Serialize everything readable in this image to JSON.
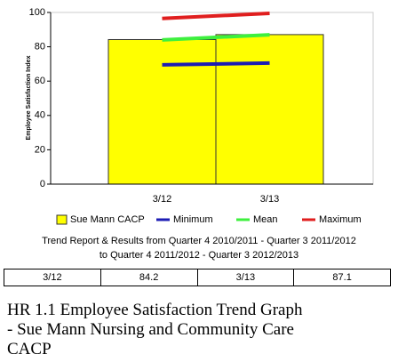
{
  "chart_data": {
    "type": "bar",
    "ylabel": "Employee Satisfaction Index",
    "categories": [
      "3/12",
      "3/13"
    ],
    "series": [
      {
        "name": "Sue Mann CACP",
        "color": "#ffff00",
        "values": [
          84.2,
          87.1
        ]
      },
      {
        "name": "Minimum",
        "type": "line",
        "color": "#1c1cb4",
        "values": [
          69.5,
          70.5
        ]
      },
      {
        "name": "Mean",
        "type": "line",
        "color": "#3ef03e",
        "values": [
          84,
          87
        ]
      },
      {
        "name": "Maximum",
        "type": "line",
        "color": "#e01e1e",
        "values": [
          96.5,
          99.5
        ]
      }
    ],
    "ylim": [
      0,
      100
    ],
    "yticks": [
      0,
      20,
      40,
      60,
      80,
      100
    ],
    "subtitle": [
      "Trend Report & Results from Quarter 4 2010/2011 - Quarter 3 2011/2012",
      "to Quarter 4 2011/2012 - Quarter 3 2012/2013"
    ]
  },
  "table": {
    "rows": [
      [
        "3/12",
        "84.2",
        "3/13",
        "87.1"
      ]
    ]
  },
  "caption": [
    "HR 1.1 Employee Satisfaction Trend Graph",
    "- Sue Mann Nursing and Community Care",
    "CACP"
  ]
}
